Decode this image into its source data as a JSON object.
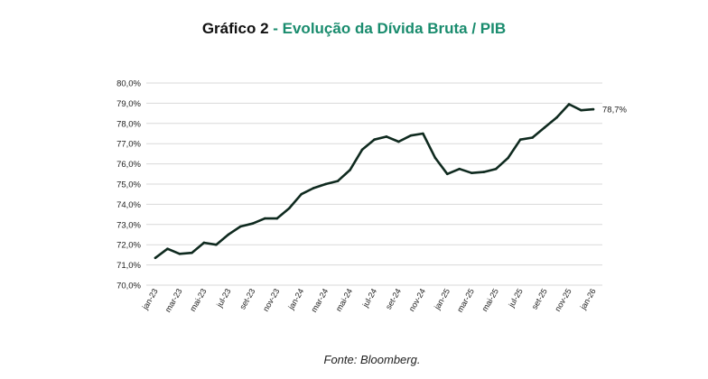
{
  "header": {
    "prefix": "Gráfico 2",
    "rest": " - Evolução da Dívida Bruta / PIB"
  },
  "footer": {
    "source": "Fonte: Bloomberg."
  },
  "colors": {
    "line": "#0f2a1f",
    "grid": "#d9d9d9",
    "title_accent": "#1a8c6e"
  },
  "chart_data": {
    "type": "line",
    "title": "Gráfico 2 - Evolução da Dívida Bruta / PIB",
    "xlabel": "",
    "ylabel": "",
    "ylim": [
      70.0,
      80.0
    ],
    "grid": true,
    "x_tick_labels": [
      "jan-23",
      "mar-23",
      "mai-23",
      "jul-23",
      "set-23",
      "nov-23",
      "jan-24",
      "mar-24",
      "mai-24",
      "jul-24",
      "set-24",
      "nov-24",
      "jan-25",
      "mar-25",
      "mai-25",
      "jul-25",
      "set-25",
      "nov-25",
      "jan-26"
    ],
    "y_tick_labels": [
      "70,0%",
      "71,0%",
      "72,0%",
      "73,0%",
      "74,0%",
      "75,0%",
      "76,0%",
      "77,0%",
      "78,0%",
      "79,0%",
      "80,0%"
    ],
    "x": [
      "jan-23",
      "fev-23",
      "mar-23",
      "abr-23",
      "mai-23",
      "jun-23",
      "jul-23",
      "ago-23",
      "set-23",
      "out-23",
      "nov-23",
      "dez-23",
      "jan-24",
      "fev-24",
      "mar-24",
      "abr-24",
      "mai-24",
      "jun-24",
      "jul-24",
      "ago-24",
      "set-24",
      "out-24",
      "nov-24",
      "dez-24",
      "jan-25",
      "fev-25",
      "mar-25",
      "abr-25",
      "mai-25",
      "jun-25",
      "jul-25",
      "ago-25",
      "set-25",
      "out-25",
      "nov-25",
      "dez-25",
      "jan-26"
    ],
    "series": [
      {
        "values": [
          71.35,
          71.8,
          71.55,
          71.6,
          72.1,
          72.0,
          72.5,
          72.9,
          73.05,
          73.3,
          73.3,
          73.8,
          74.5,
          74.8,
          75.0,
          75.15,
          75.7,
          76.7,
          77.2,
          77.35,
          77.1,
          77.4,
          77.5,
          76.3,
          75.5,
          75.75,
          75.55,
          75.6,
          75.75,
          76.3,
          77.2,
          77.3,
          77.8,
          78.3,
          78.95,
          78.65,
          78.7
        ]
      }
    ],
    "end_label": "78,7%"
  }
}
